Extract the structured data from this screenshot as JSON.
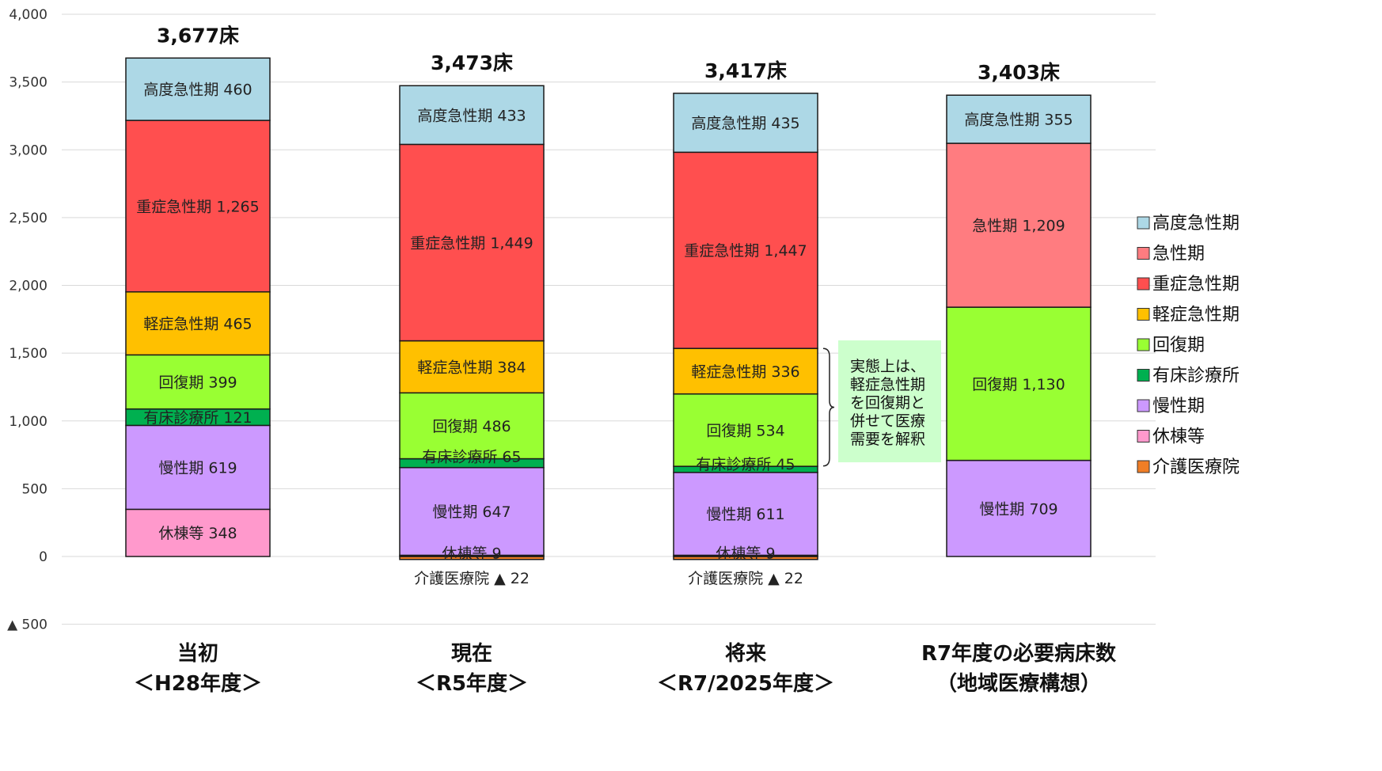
{
  "chart_data": {
    "type": "bar",
    "stacked": true,
    "ylim": [
      -500,
      4000
    ],
    "yticks": [
      -500,
      0,
      500,
      1000,
      1500,
      2000,
      2500,
      3000,
      3500,
      4000
    ],
    "ytick_labels": [
      "▲ 500",
      "0",
      "500",
      "1,000",
      "1,500",
      "2,000",
      "2,500",
      "3,000",
      "3,500",
      "4,000"
    ],
    "grid": true,
    "legend_position": "right",
    "categories": [
      {
        "line1": "当初",
        "line2": "＜H28年度＞"
      },
      {
        "line1": "現在",
        "line2": "＜R5年度＞"
      },
      {
        "line1": "将来",
        "line2": "＜R7/2025年度＞"
      },
      {
        "line1": "R7年度の必要病床数",
        "line2": "（地域医療構想）"
      }
    ],
    "totals": [
      "3,677床",
      "3,473床",
      "3,417床",
      "3,403床"
    ],
    "series": [
      {
        "name": "介護医療院",
        "color": "#f07e26",
        "values": [
          0,
          -22,
          -22,
          0
        ],
        "labels": [
          "",
          "介護医療院 ▲ 22",
          "介護医療院 ▲ 22",
          ""
        ]
      },
      {
        "name": "休棟等",
        "color": "#ff99cc",
        "values": [
          348,
          9,
          9,
          0
        ],
        "labels": [
          "休棟等 348",
          "休棟等 9",
          "休棟等 9",
          ""
        ]
      },
      {
        "name": "慢性期",
        "color": "#cc99ff",
        "values": [
          619,
          647,
          611,
          709
        ],
        "labels": [
          "慢性期 619",
          "慢性期 647",
          "慢性期 611",
          "慢性期 709"
        ]
      },
      {
        "name": "有床診療所",
        "color": "#00b050",
        "values": [
          121,
          65,
          45,
          0
        ],
        "labels": [
          "有床診療所 121",
          "有床診療所 65",
          "有床診療所 45",
          ""
        ]
      },
      {
        "name": "回復期",
        "color": "#99ff33",
        "values": [
          399,
          486,
          534,
          1130
        ],
        "labels": [
          "回復期 399",
          "回復期 486",
          "回復期 534",
          "回復期 1,130"
        ]
      },
      {
        "name": "軽症急性期",
        "color": "#ffc000",
        "values": [
          465,
          384,
          336,
          0
        ],
        "labels": [
          "軽症急性期 465",
          "軽症急性期 384",
          "軽症急性期 336",
          ""
        ]
      },
      {
        "name": "重症急性期",
        "color": "#ff4f4f",
        "values": [
          1265,
          1449,
          1447,
          0
        ],
        "labels": [
          "重症急性期 1,265",
          "重症急性期 1,449",
          "重症急性期 1,447",
          ""
        ]
      },
      {
        "name": "急性期",
        "color": "#ff7c80",
        "values": [
          0,
          0,
          0,
          1209
        ],
        "labels": [
          "",
          "",
          "",
          "急性期 1,209"
        ]
      },
      {
        "name": "高度急性期",
        "color": "#add8e6",
        "values": [
          460,
          433,
          435,
          355
        ],
        "labels": [
          "高度急性期 460",
          "高度急性期 433",
          "高度急性期 435",
          "高度急性期 355"
        ]
      }
    ],
    "legend_order": [
      "高度急性期",
      "急性期",
      "重症急性期",
      "軽症急性期",
      "回復期",
      "有床診療所",
      "慢性期",
      "休棟等",
      "介護医療院"
    ],
    "annotation": {
      "lines": [
        "実態上は、",
        "軽症急性期",
        "を回復期と",
        "併せて医療",
        "需要を解釈"
      ],
      "background": "#ccffcc",
      "bracket_range": [
        668,
        1534
      ]
    }
  }
}
